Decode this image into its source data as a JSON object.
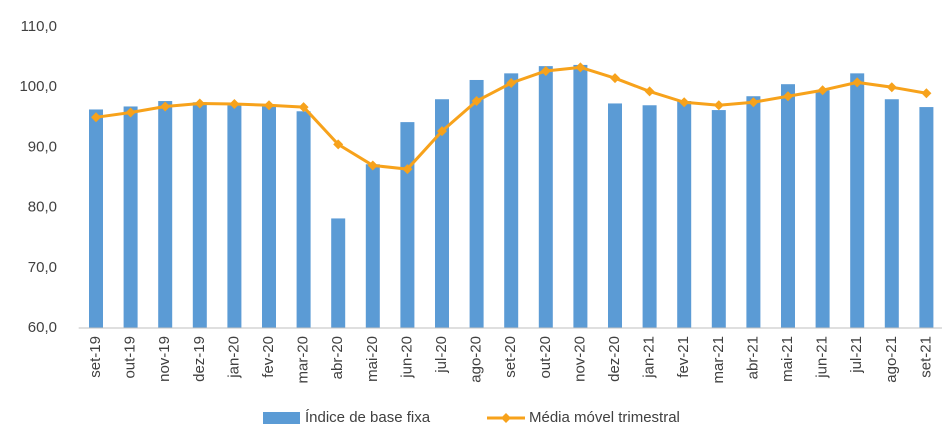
{
  "chart_data": {
    "type": "bar_line",
    "categories": [
      "set-19",
      "out-19",
      "nov-19",
      "dez-19",
      "jan-20",
      "fev-20",
      "mar-20",
      "abr-20",
      "mai-20",
      "jun-20",
      "jul-20",
      "ago-20",
      "set-20",
      "out-20",
      "nov-20",
      "dez-20",
      "jan-21",
      "fev-21",
      "mar-21",
      "abr-21",
      "mai-21",
      "jun-21",
      "jul-21",
      "ago-21",
      "set-21"
    ],
    "series": [
      {
        "name": "Índice de base fixa",
        "color": "#5b9bd5",
        "kind": "bar",
        "values": [
          96.3,
          96.8,
          97.7,
          97.5,
          97.0,
          97.0,
          96.0,
          78.2,
          87.2,
          94.2,
          98.0,
          101.2,
          102.3,
          103.5,
          103.7,
          97.3,
          97.0,
          97.7,
          96.2,
          98.5,
          100.5,
          99.5,
          102.3,
          98.0,
          96.7
        ]
      },
      {
        "name": "Média móvel trimestral",
        "color": "#f7a21b",
        "kind": "line",
        "values": [
          95.0,
          95.8,
          96.8,
          97.3,
          97.2,
          97.0,
          96.7,
          90.5,
          87.0,
          86.4,
          92.7,
          97.7,
          100.7,
          102.7,
          103.3,
          101.5,
          99.3,
          97.5,
          97.0,
          97.5,
          98.5,
          99.5,
          100.8,
          100.0,
          99.0
        ]
      }
    ],
    "ylim": [
      60,
      110
    ],
    "yticks": [
      {
        "value": 60,
        "label": "60,0"
      },
      {
        "value": 70,
        "label": "70,0"
      },
      {
        "value": 80,
        "label": "80,0"
      },
      {
        "value": 90,
        "label": "90,0"
      },
      {
        "value": 100,
        "label": "100,0"
      },
      {
        "value": 110,
        "label": "110,0"
      }
    ],
    "grid": false,
    "legend": "bottom"
  }
}
